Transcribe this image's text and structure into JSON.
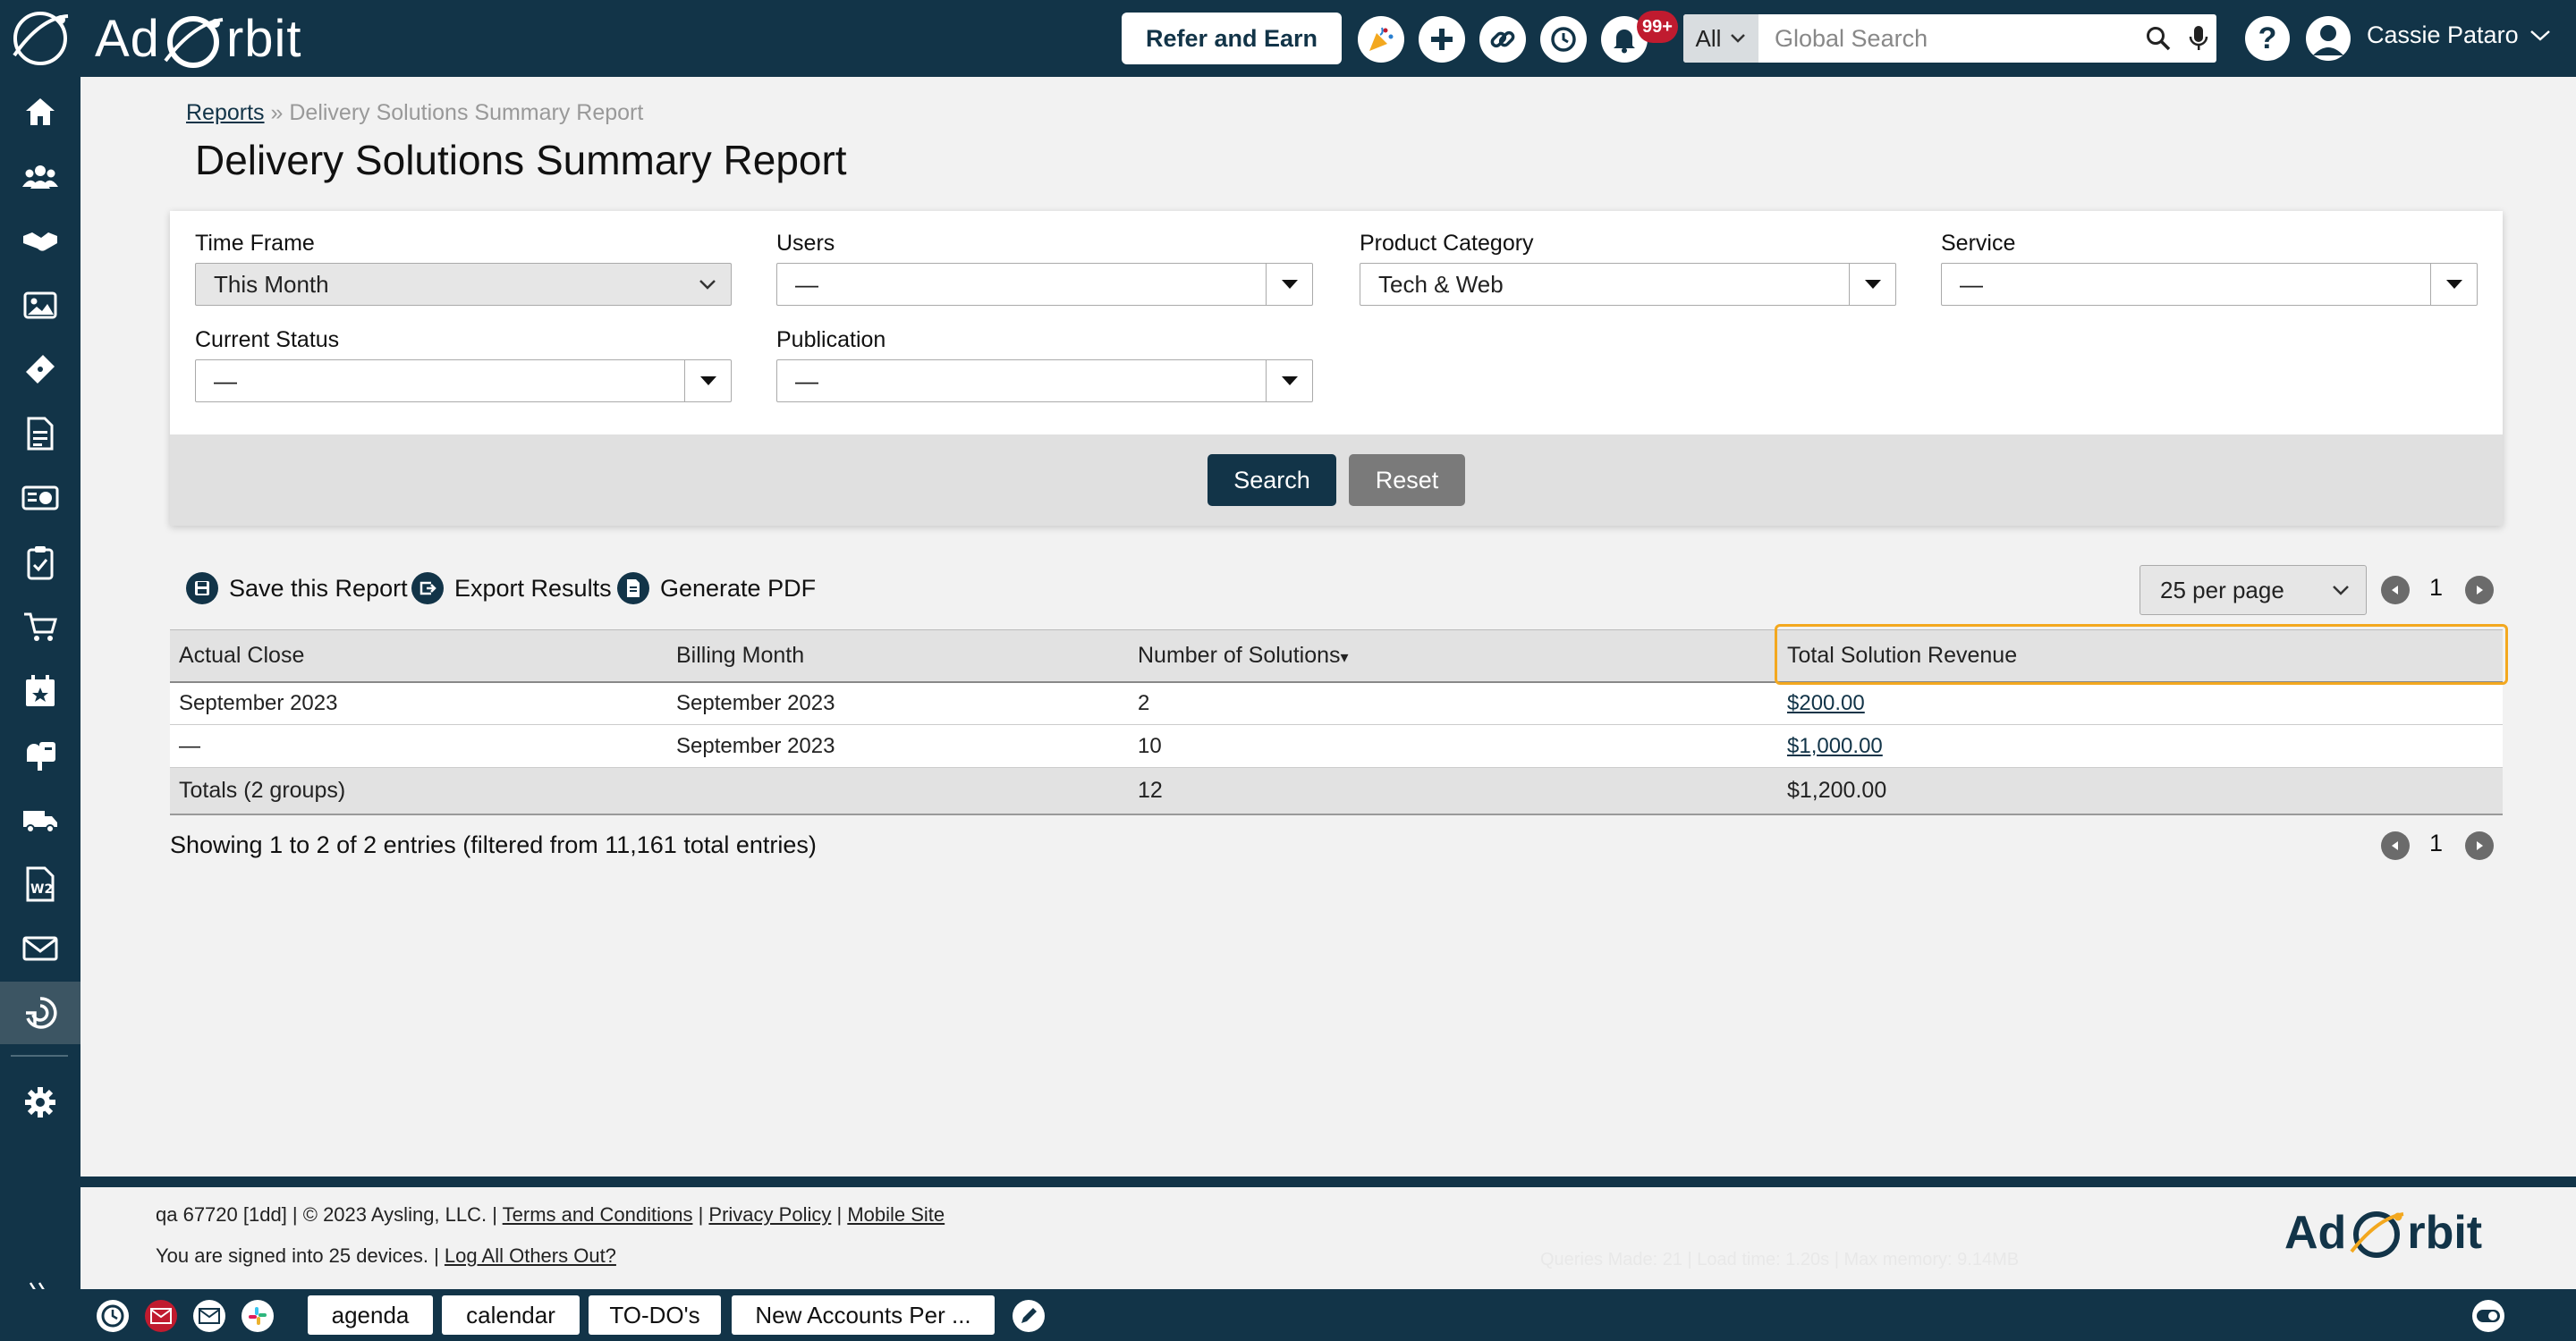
{
  "app": {
    "brand_left": "Ad",
    "brand_right": "rbit"
  },
  "header": {
    "refer_label": "Refer and Earn",
    "notifications_badge": "99+",
    "search_scope": "All",
    "search_placeholder": "Global Search",
    "help_label": "?",
    "user_name": "Cassie Pataro"
  },
  "sidebar": {
    "items": [
      {
        "icon": "home-icon"
      },
      {
        "icon": "contacts-icon"
      },
      {
        "icon": "handshake-icon"
      },
      {
        "icon": "media-icon"
      },
      {
        "icon": "ticket-icon"
      },
      {
        "icon": "document-icon"
      },
      {
        "icon": "billing-icon"
      },
      {
        "icon": "clipboard-icon"
      },
      {
        "icon": "cart-icon"
      },
      {
        "icon": "calendar-star-icon"
      },
      {
        "icon": "mailbox-icon"
      },
      {
        "icon": "truck-icon"
      },
      {
        "icon": "w2-icon"
      },
      {
        "icon": "mail-icon"
      },
      {
        "icon": "reports-icon",
        "active": true
      },
      {
        "icon": "gear-icon"
      }
    ]
  },
  "breadcrumb": {
    "parent": "Reports",
    "separator": "»",
    "current": "Delivery Solutions Summary Report"
  },
  "page_title": "Delivery Solutions Summary Report",
  "filters": {
    "time_frame": {
      "label": "Time Frame",
      "value": "This Month"
    },
    "users": {
      "label": "Users",
      "value": "—"
    },
    "product_category": {
      "label": "Product Category",
      "value": "Tech & Web"
    },
    "service": {
      "label": "Service",
      "value": "—"
    },
    "current_status": {
      "label": "Current Status",
      "value": "—"
    },
    "publication": {
      "label": "Publication",
      "value": "—"
    },
    "search_label": "Search",
    "reset_label": "Reset"
  },
  "actions": {
    "save_label": "Save this Report",
    "export_label": "Export Results",
    "pdf_label": "Generate PDF",
    "per_page": "25 per page",
    "page": "1"
  },
  "table": {
    "headers": [
      "Actual Close",
      "Billing Month",
      "Number of Solutions",
      "Total Solution Revenue"
    ],
    "sort_indicator": "▾",
    "rows": [
      [
        "September 2023",
        "September 2023",
        "2",
        "$200.00"
      ],
      [
        "—",
        "September 2023",
        "10",
        "$1,000.00"
      ]
    ],
    "totals": [
      "Totals (2 groups)",
      "",
      "12",
      "$1,200.00"
    ]
  },
  "entries_info": "Showing 1 to 2 of 2 entries (filtered from 11,161 total entries)",
  "footer": {
    "line1_prefix": "qa 67720 [1dd] | © 2023 Aysling, LLC. |",
    "terms": "Terms and Conditions",
    "privacy": "Privacy Policy",
    "mobile": "Mobile Site",
    "sep": "|",
    "line2_prefix": "You are signed into 25 devices. |",
    "logout_all": "Log All Others Out?",
    "faint": "Queries Made: 21 | Load time: 1.20s | Max memory: 9.14MB"
  },
  "bottombar": {
    "tabs": [
      "agenda",
      "calendar",
      "TO-DO's",
      "New Accounts Per ..."
    ]
  },
  "colors": {
    "navy": "#123448",
    "accent_orange": "#f3a81f",
    "badge_red": "#c01b2f",
    "search_btn": "#123448",
    "reset_btn": "#7a7a7a"
  }
}
